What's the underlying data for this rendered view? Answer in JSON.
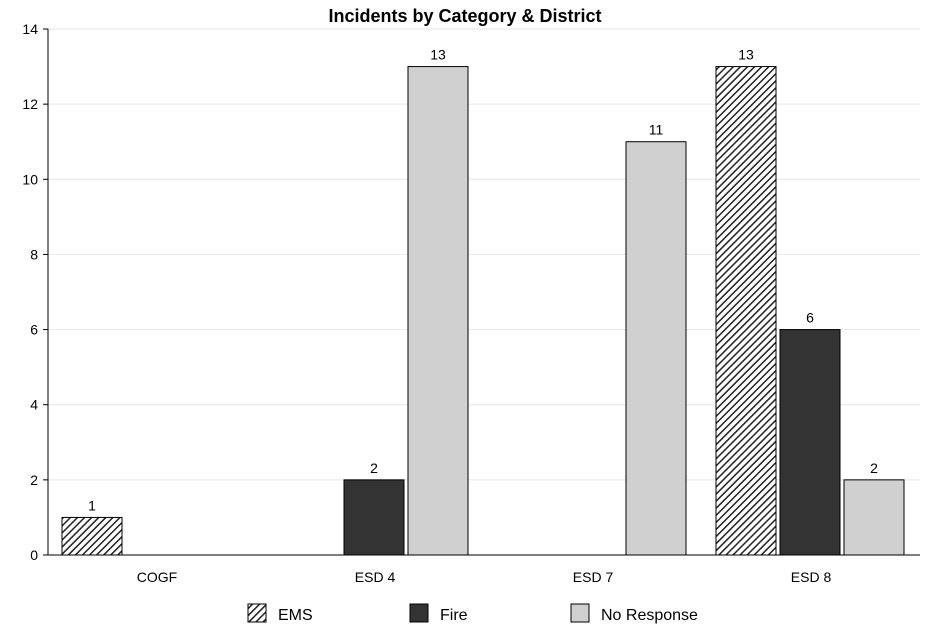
{
  "chart_data": {
    "type": "bar",
    "title": "Incidents by Category & District",
    "xlabel": "",
    "ylabel": "",
    "categories": [
      "COGF",
      "ESD 4",
      "ESD 7",
      "ESD 8"
    ],
    "series": [
      {
        "name": "EMS",
        "values": [
          1,
          0,
          0,
          13
        ],
        "fill": "hatch"
      },
      {
        "name": "Fire",
        "values": [
          0,
          2,
          0,
          6
        ],
        "fill": "#333333"
      },
      {
        "name": "No Response",
        "values": [
          0,
          13,
          11,
          2
        ],
        "fill": "#d0d0d0"
      }
    ],
    "ylim": [
      0,
      14
    ],
    "yticks": [
      0,
      2,
      4,
      6,
      8,
      10,
      12,
      14
    ],
    "grid": true,
    "legend_position": "bottom",
    "data_labels": true
  }
}
